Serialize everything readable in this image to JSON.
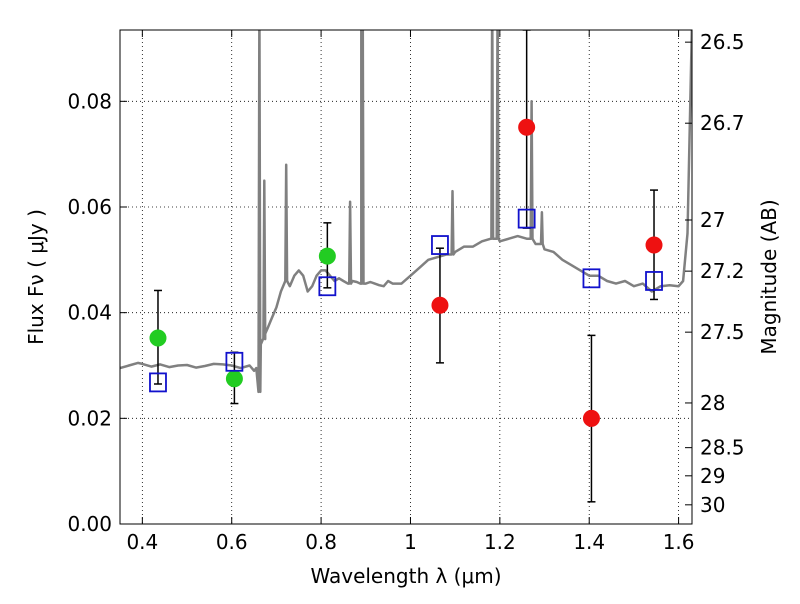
{
  "chart_data": {
    "type": "scatter",
    "xlabel": "Wavelength  λ (μm)",
    "ylabel": "Flux  Fν ( μJy )",
    "y2label": "Magnitude (AB)",
    "xlim": [
      0.35,
      1.63
    ],
    "ylim": [
      0.0,
      0.0935
    ],
    "grid": true,
    "x_ticks": [
      {
        "value": 0.4,
        "label": "0.4"
      },
      {
        "value": 0.6,
        "label": "0.6"
      },
      {
        "value": 0.8,
        "label": "0.8"
      },
      {
        "value": 1.0,
        "label": "1"
      },
      {
        "value": 1.2,
        "label": "1.2"
      },
      {
        "value": 1.4,
        "label": "1.4"
      },
      {
        "value": 1.6,
        "label": "1.6"
      }
    ],
    "y_ticks": [
      {
        "value": 0.0,
        "label": "0.00"
      },
      {
        "value": 0.02,
        "label": "0.02"
      },
      {
        "value": 0.04,
        "label": "0.04"
      },
      {
        "value": 0.06,
        "label": "0.06"
      },
      {
        "value": 0.08,
        "label": "0.08"
      }
    ],
    "y2_ticks": [
      {
        "label": "26.5",
        "flux": 0.0912
      },
      {
        "label": "26.7",
        "flux": 0.07586
      },
      {
        "label": "27",
        "flux": 0.05754
      },
      {
        "label": "27.2",
        "flux": 0.04786
      },
      {
        "label": "27.5",
        "flux": 0.03631
      },
      {
        "label": "28",
        "flux": 0.02291
      },
      {
        "label": "28.5",
        "flux": 0.01445
      },
      {
        "label": "29",
        "flux": 0.00912
      },
      {
        "label": "30",
        "flux": 0.00363
      }
    ],
    "series": [
      {
        "marker": "circle",
        "color": "#22cc22",
        "points": [
          {
            "x": 0.435,
            "y": 0.0352,
            "ylo": 0.0265,
            "yhi": 0.0442
          },
          {
            "x": 0.606,
            "y": 0.0275,
            "ylo": 0.0228,
            "yhi": 0.0325
          },
          {
            "x": 0.814,
            "y": 0.0507,
            "ylo": 0.0447,
            "yhi": 0.057
          }
        ]
      },
      {
        "marker": "circle",
        "color": "#ee1111",
        "points": [
          {
            "x": 1.066,
            "y": 0.0414,
            "ylo": 0.0305,
            "yhi": 0.0522
          },
          {
            "x": 1.26,
            "y": 0.0751,
            "ylo": 0.056,
            "yhi": 0.0935
          },
          {
            "x": 1.405,
            "y": 0.02,
            "ylo": 0.0042,
            "yhi": 0.0357
          },
          {
            "x": 1.545,
            "y": 0.0528,
            "ylo": 0.0425,
            "yhi": 0.0632
          }
        ]
      },
      {
        "marker": "square",
        "color": "#1111cc",
        "points": [
          {
            "x": 0.435,
            "y": 0.0268
          },
          {
            "x": 0.606,
            "y": 0.0307
          },
          {
            "x": 0.814,
            "y": 0.045
          },
          {
            "x": 1.066,
            "y": 0.0528
          },
          {
            "x": 1.26,
            "y": 0.0578
          },
          {
            "x": 1.405,
            "y": 0.0465
          },
          {
            "x": 1.545,
            "y": 0.046
          }
        ]
      }
    ],
    "model_spectrum": {
      "color": "#808080",
      "x": [
        0.35,
        0.37,
        0.39,
        0.4,
        0.42,
        0.44,
        0.46,
        0.48,
        0.5,
        0.52,
        0.54,
        0.56,
        0.58,
        0.6,
        0.62,
        0.64,
        0.65,
        0.655,
        0.66,
        0.665,
        0.67,
        0.675,
        0.68,
        0.69,
        0.7,
        0.71,
        0.72,
        0.73,
        0.74,
        0.75,
        0.76,
        0.77,
        0.78,
        0.79,
        0.8,
        0.81,
        0.82,
        0.83,
        0.84,
        0.85,
        0.86,
        0.87,
        0.88,
        0.89,
        0.9,
        0.91,
        0.92,
        0.93,
        0.94,
        0.95,
        0.96,
        0.98,
        1.0,
        1.02,
        1.04,
        1.06,
        1.08,
        1.1,
        1.12,
        1.14,
        1.16,
        1.18,
        1.2,
        1.22,
        1.24,
        1.26,
        1.28,
        1.3,
        1.32,
        1.34,
        1.36,
        1.38,
        1.4,
        1.42,
        1.44,
        1.46,
        1.48,
        1.5,
        1.52,
        1.54,
        1.56,
        1.58,
        1.6,
        1.61,
        1.62,
        1.63
      ],
      "y": [
        0.0295,
        0.03,
        0.0305,
        0.0303,
        0.0298,
        0.0302,
        0.0297,
        0.03,
        0.0301,
        0.0296,
        0.0299,
        0.0303,
        0.0302,
        0.03,
        0.0295,
        0.03,
        0.029,
        0.0295,
        0.025,
        0.034,
        0.035,
        0.036,
        0.037,
        0.039,
        0.041,
        0.044,
        0.046,
        0.045,
        0.047,
        0.048,
        0.047,
        0.044,
        0.045,
        0.047,
        0.048,
        0.048,
        0.047,
        0.046,
        0.0465,
        0.046,
        0.0455,
        0.046,
        0.0458,
        0.0455,
        0.0455,
        0.0458,
        0.0455,
        0.0452,
        0.045,
        0.046,
        0.0455,
        0.0455,
        0.047,
        0.0485,
        0.05,
        0.0505,
        0.051,
        0.0515,
        0.0525,
        0.0525,
        0.0535,
        0.054,
        0.0535,
        0.054,
        0.0545,
        0.054,
        0.053,
        0.052,
        0.0515,
        0.05,
        0.049,
        0.048,
        0.047,
        0.047,
        0.046,
        0.0455,
        0.046,
        0.045,
        0.0455,
        0.044,
        0.045,
        0.0452,
        0.045,
        0.046,
        0.055,
        0.095
      ],
      "spikes": [
        {
          "x": 0.662,
          "h": 0.1
        },
        {
          "x": 0.673,
          "h": 0.065
        },
        {
          "x": 0.722,
          "h": 0.068
        },
        {
          "x": 0.865,
          "h": 0.061
        },
        {
          "x": 0.89,
          "h": 0.1
        },
        {
          "x": 0.893,
          "h": 0.1
        },
        {
          "x": 1.094,
          "h": 0.063
        },
        {
          "x": 1.183,
          "h": 0.1
        },
        {
          "x": 1.195,
          "h": 0.1
        },
        {
          "x": 1.271,
          "h": 0.08
        },
        {
          "x": 1.294,
          "h": 0.059
        }
      ]
    }
  }
}
